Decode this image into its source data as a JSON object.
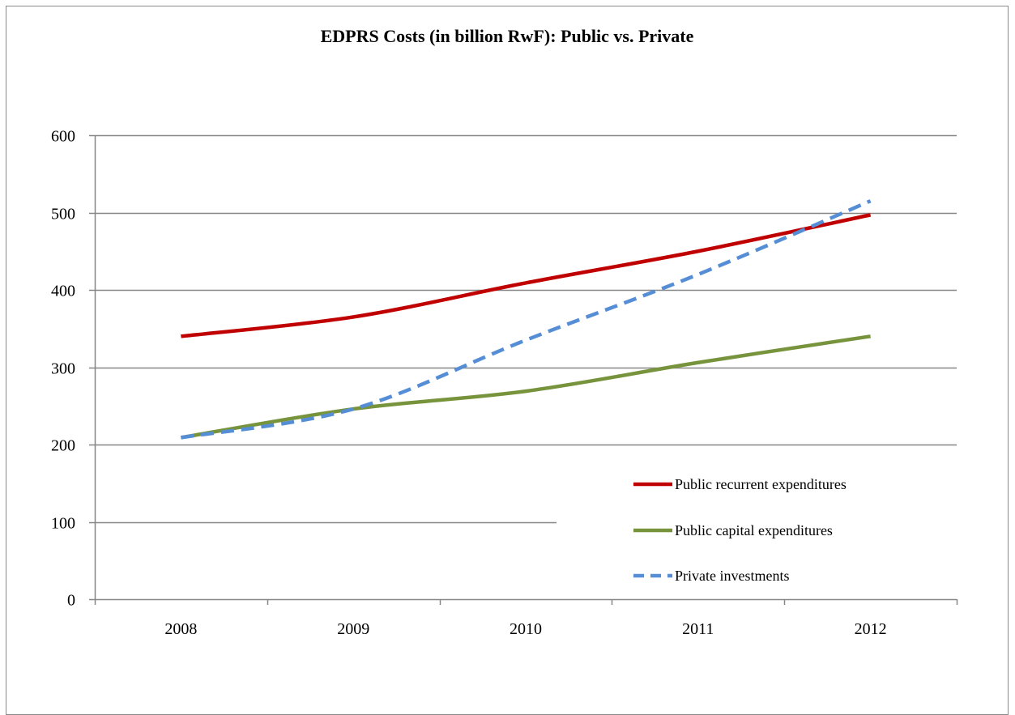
{
  "chart_data": {
    "type": "line",
    "title": "EDPRS Costs (in billion RwF): Public vs. Private",
    "xlabel": "",
    "ylabel": "",
    "categories": [
      "2008",
      "2009",
      "2010",
      "2011",
      "2012"
    ],
    "ylim": [
      0,
      600
    ],
    "yticks": [
      "0",
      "100",
      "200",
      "300",
      "400",
      "500",
      "600"
    ],
    "grid": "horizontal",
    "legend_position": "bottom-right",
    "series": [
      {
        "name": "Public recurrent expenditures",
        "values": [
          340,
          365,
          409,
          450,
          497
        ],
        "color": "#c00000",
        "style": "solid"
      },
      {
        "name": "Public capital expenditures",
        "values": [
          209,
          246,
          269,
          306,
          340
        ],
        "color": "#77933c",
        "style": "solid"
      },
      {
        "name": "Private investments",
        "values": [
          209,
          246,
          335,
          420,
          515
        ],
        "color": "#558ed5",
        "style": "dashed"
      }
    ]
  }
}
